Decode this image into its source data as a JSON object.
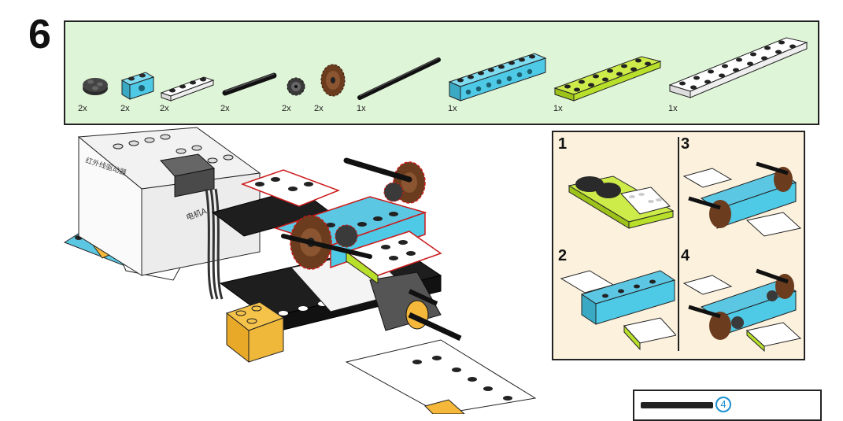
{
  "step": {
    "number": "6"
  },
  "parts": [
    {
      "name": "round-plate-2x2",
      "qty": "2x",
      "color": "#3a3a3a"
    },
    {
      "name": "technic-brick-1x2",
      "qty": "2x",
      "color": "#4ec9e6"
    },
    {
      "name": "plate-1x4-white",
      "qty": "2x",
      "color": "#ffffff"
    },
    {
      "name": "technic-axle",
      "qty": "2x",
      "color": "#222222"
    },
    {
      "name": "gear-small",
      "qty": "2x",
      "color": "#4a4a4a"
    },
    {
      "name": "gear-brown",
      "qty": "2x",
      "color": "#7a4a2a"
    },
    {
      "name": "technic-axle-long",
      "qty": "1x",
      "color": "#222222"
    },
    {
      "name": "technic-brick-1x8",
      "qty": "1x",
      "color": "#4ec9e6"
    },
    {
      "name": "plate-2x6-lime",
      "qty": "1x",
      "color": "#b8e02a"
    },
    {
      "name": "plate-2x8-white",
      "qty": "1x",
      "color": "#ffffff"
    }
  ],
  "motor_labels": {
    "top": "红外线驱动器",
    "side": "电机A"
  },
  "substeps": [
    {
      "number": "1"
    },
    {
      "number": "2"
    },
    {
      "number": "3"
    },
    {
      "number": "4"
    }
  ],
  "callout": {
    "badge": "4"
  },
  "colors": {
    "panel_bg": "#dff5d8",
    "sub_bg": "#fbf1dd",
    "azure": "#4ec9e6",
    "lime": "#b8e02a",
    "brown": "#7a4a2a",
    "orange": "#f5b83a",
    "highlight": "#cc1a1a"
  }
}
